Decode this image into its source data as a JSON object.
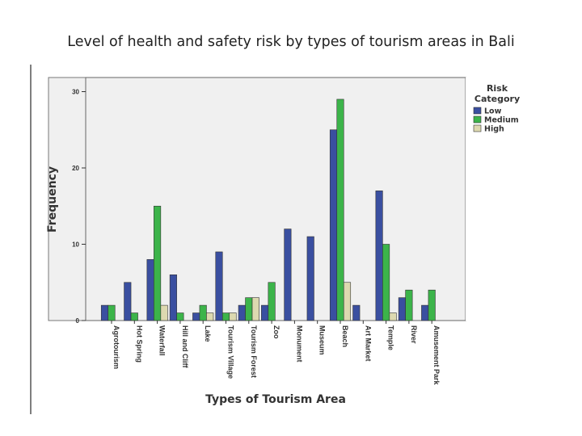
{
  "slide": {
    "title": "Level of health and safety risk by types of tourism areas in Bali"
  },
  "chart_data": {
    "type": "bar",
    "title": "Level of health and safety risk by types of tourism areas in Bali",
    "xlabel": "Types of Tourism Area",
    "ylabel": "Frequency",
    "ylim": [
      0,
      32
    ],
    "yticks": [
      0,
      10,
      20,
      30
    ],
    "grid": false,
    "legend_title": "Risk Category",
    "legend_placement": "right",
    "categories": [
      "Agrotourism",
      "Hot Spring",
      "Waterfall",
      "Hill and Cliff",
      "Lake",
      "Tourism Village",
      "Tourism Forest",
      "Zoo",
      "Monument",
      "Museum",
      "Beach",
      "Art Market",
      "Temple",
      "River",
      "Amusement Park"
    ],
    "series": [
      {
        "name": "Low",
        "color": "#3a4fa0",
        "values": [
          2,
          5,
          8,
          6,
          1,
          9,
          2,
          2,
          12,
          11,
          25,
          2,
          17,
          3,
          2
        ]
      },
      {
        "name": "Medium",
        "color": "#3cb44a",
        "values": [
          2,
          1,
          15,
          1,
          2,
          1,
          3,
          5,
          0,
          0,
          29,
          0,
          10,
          4,
          4
        ]
      },
      {
        "name": "High",
        "color": "#ddd9b0",
        "values": [
          0,
          0,
          2,
          0,
          1,
          1,
          3,
          0,
          0,
          0,
          5,
          0,
          1,
          0,
          0
        ]
      }
    ]
  }
}
